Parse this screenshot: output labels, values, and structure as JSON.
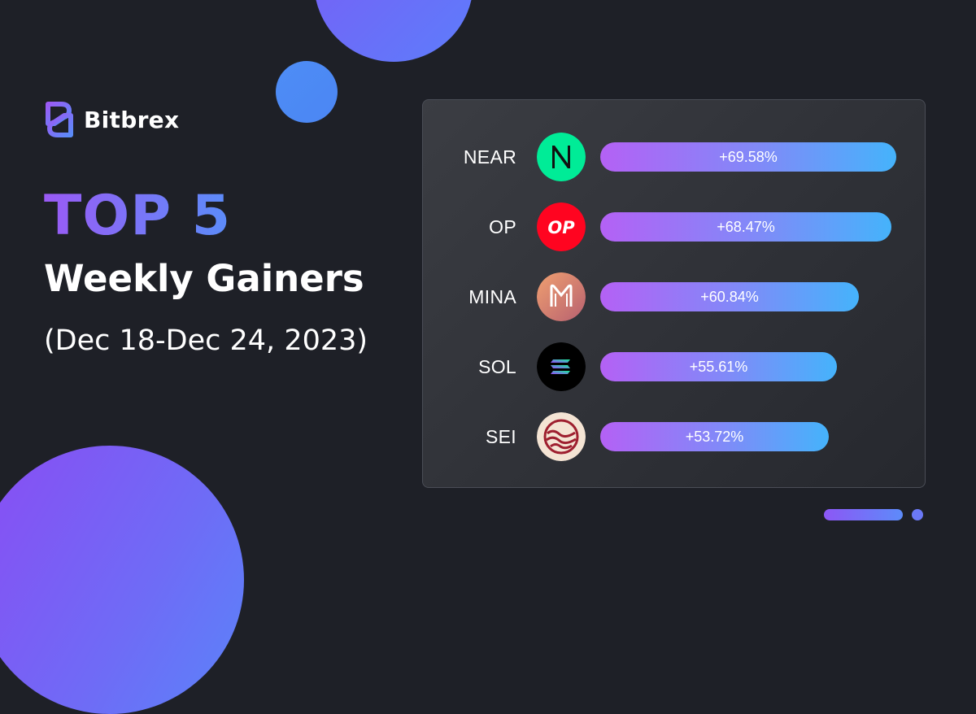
{
  "brand": {
    "name": "Bitbrex"
  },
  "header": {
    "headline": "TOP 5",
    "subtitle": "Weekly Gainers",
    "date_range": "(Dec 18-Dec 24, 2023)"
  },
  "colors": {
    "background": "#1e2027",
    "bar_start": "#b461f5",
    "bar_end": "#45b3fb",
    "accent_purple": "#8a4cf3",
    "accent_blue": "#4e8df6"
  },
  "chart_data": {
    "type": "bar",
    "orientation": "horizontal",
    "categories": [
      "NEAR",
      "OP",
      "MINA",
      "SOL",
      "SEI"
    ],
    "values": [
      69.58,
      68.47,
      60.84,
      55.61,
      53.72
    ],
    "labels": [
      "+69.58%",
      "+68.47%",
      "+60.84%",
      "+55.61%",
      "+53.72%"
    ],
    "icons": [
      "near-logo",
      "optimism-logo",
      "mina-logo",
      "solana-logo",
      "sei-logo"
    ],
    "unit": "%",
    "grid": false,
    "legend": "none"
  },
  "pager": {
    "active_index": 0,
    "count": 2
  }
}
